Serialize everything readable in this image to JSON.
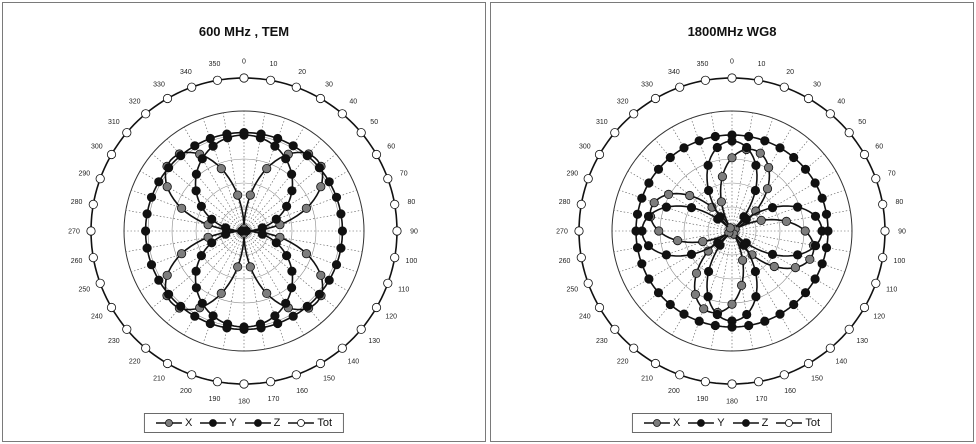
{
  "chart_data": [
    {
      "type": "polar-line",
      "title": "600 MHz , TEM",
      "angle_ticks": [
        "0",
        "10",
        "20",
        "30",
        "40",
        "50",
        "60",
        "70",
        "80",
        "90",
        "100",
        "110",
        "120",
        "130",
        "140",
        "150",
        "160",
        "170",
        "180",
        "190",
        "200",
        "210",
        "220",
        "230",
        "240",
        "250",
        "260",
        "270",
        "280",
        "290",
        "300",
        "310",
        "320",
        "330",
        "340",
        "350"
      ],
      "series": [
        {
          "name": "X",
          "marker_color": "#7d7d7d",
          "pattern": "lobes",
          "lobes": 4,
          "phase_deg": 45,
          "peak": 0.85,
          "floor": 0.02
        },
        {
          "name": "Y",
          "marker_color": "#111111",
          "pattern": "lobes",
          "lobes": 2,
          "phase_deg": 0,
          "peak": 0.8,
          "floor": 0.02
        },
        {
          "name": "Z",
          "marker_color": "#111111",
          "pattern": "ring",
          "value": 0.82
        },
        {
          "name": "Tot",
          "marker_color": "#ffffff",
          "pattern": "ring",
          "value": 1.0
        }
      ]
    },
    {
      "type": "polar-line",
      "title": "1800MHz WG8",
      "angle_ticks": [
        "0",
        "10",
        "20",
        "30",
        "40",
        "50",
        "60",
        "70",
        "80",
        "90",
        "100",
        "110",
        "120",
        "130",
        "140",
        "150",
        "160",
        "170",
        "180",
        "190",
        "200",
        "210",
        "220",
        "230",
        "240",
        "250",
        "260",
        "270",
        "280",
        "290",
        "300",
        "310",
        "320",
        "330",
        "340",
        "350"
      ],
      "series": [
        {
          "name": "X",
          "marker_color": "#7d7d7d",
          "pattern": "lobes",
          "lobes": 4,
          "phase_deg": 15,
          "peak": 0.7,
          "floor": 0.03
        },
        {
          "name": "Y",
          "marker_color": "#111111",
          "pattern": "lobes",
          "lobes": 4,
          "phase_deg": 0,
          "peak": 0.75,
          "floor": 0.03
        },
        {
          "name": "Z",
          "marker_color": "#111111",
          "pattern": "ring",
          "value": 0.8
        },
        {
          "name": "Tot",
          "marker_color": "#ffffff",
          "pattern": "ring",
          "value": 1.0
        }
      ]
    }
  ],
  "legend": {
    "labels": [
      "X",
      "Y",
      "Z",
      "Tot"
    ]
  }
}
